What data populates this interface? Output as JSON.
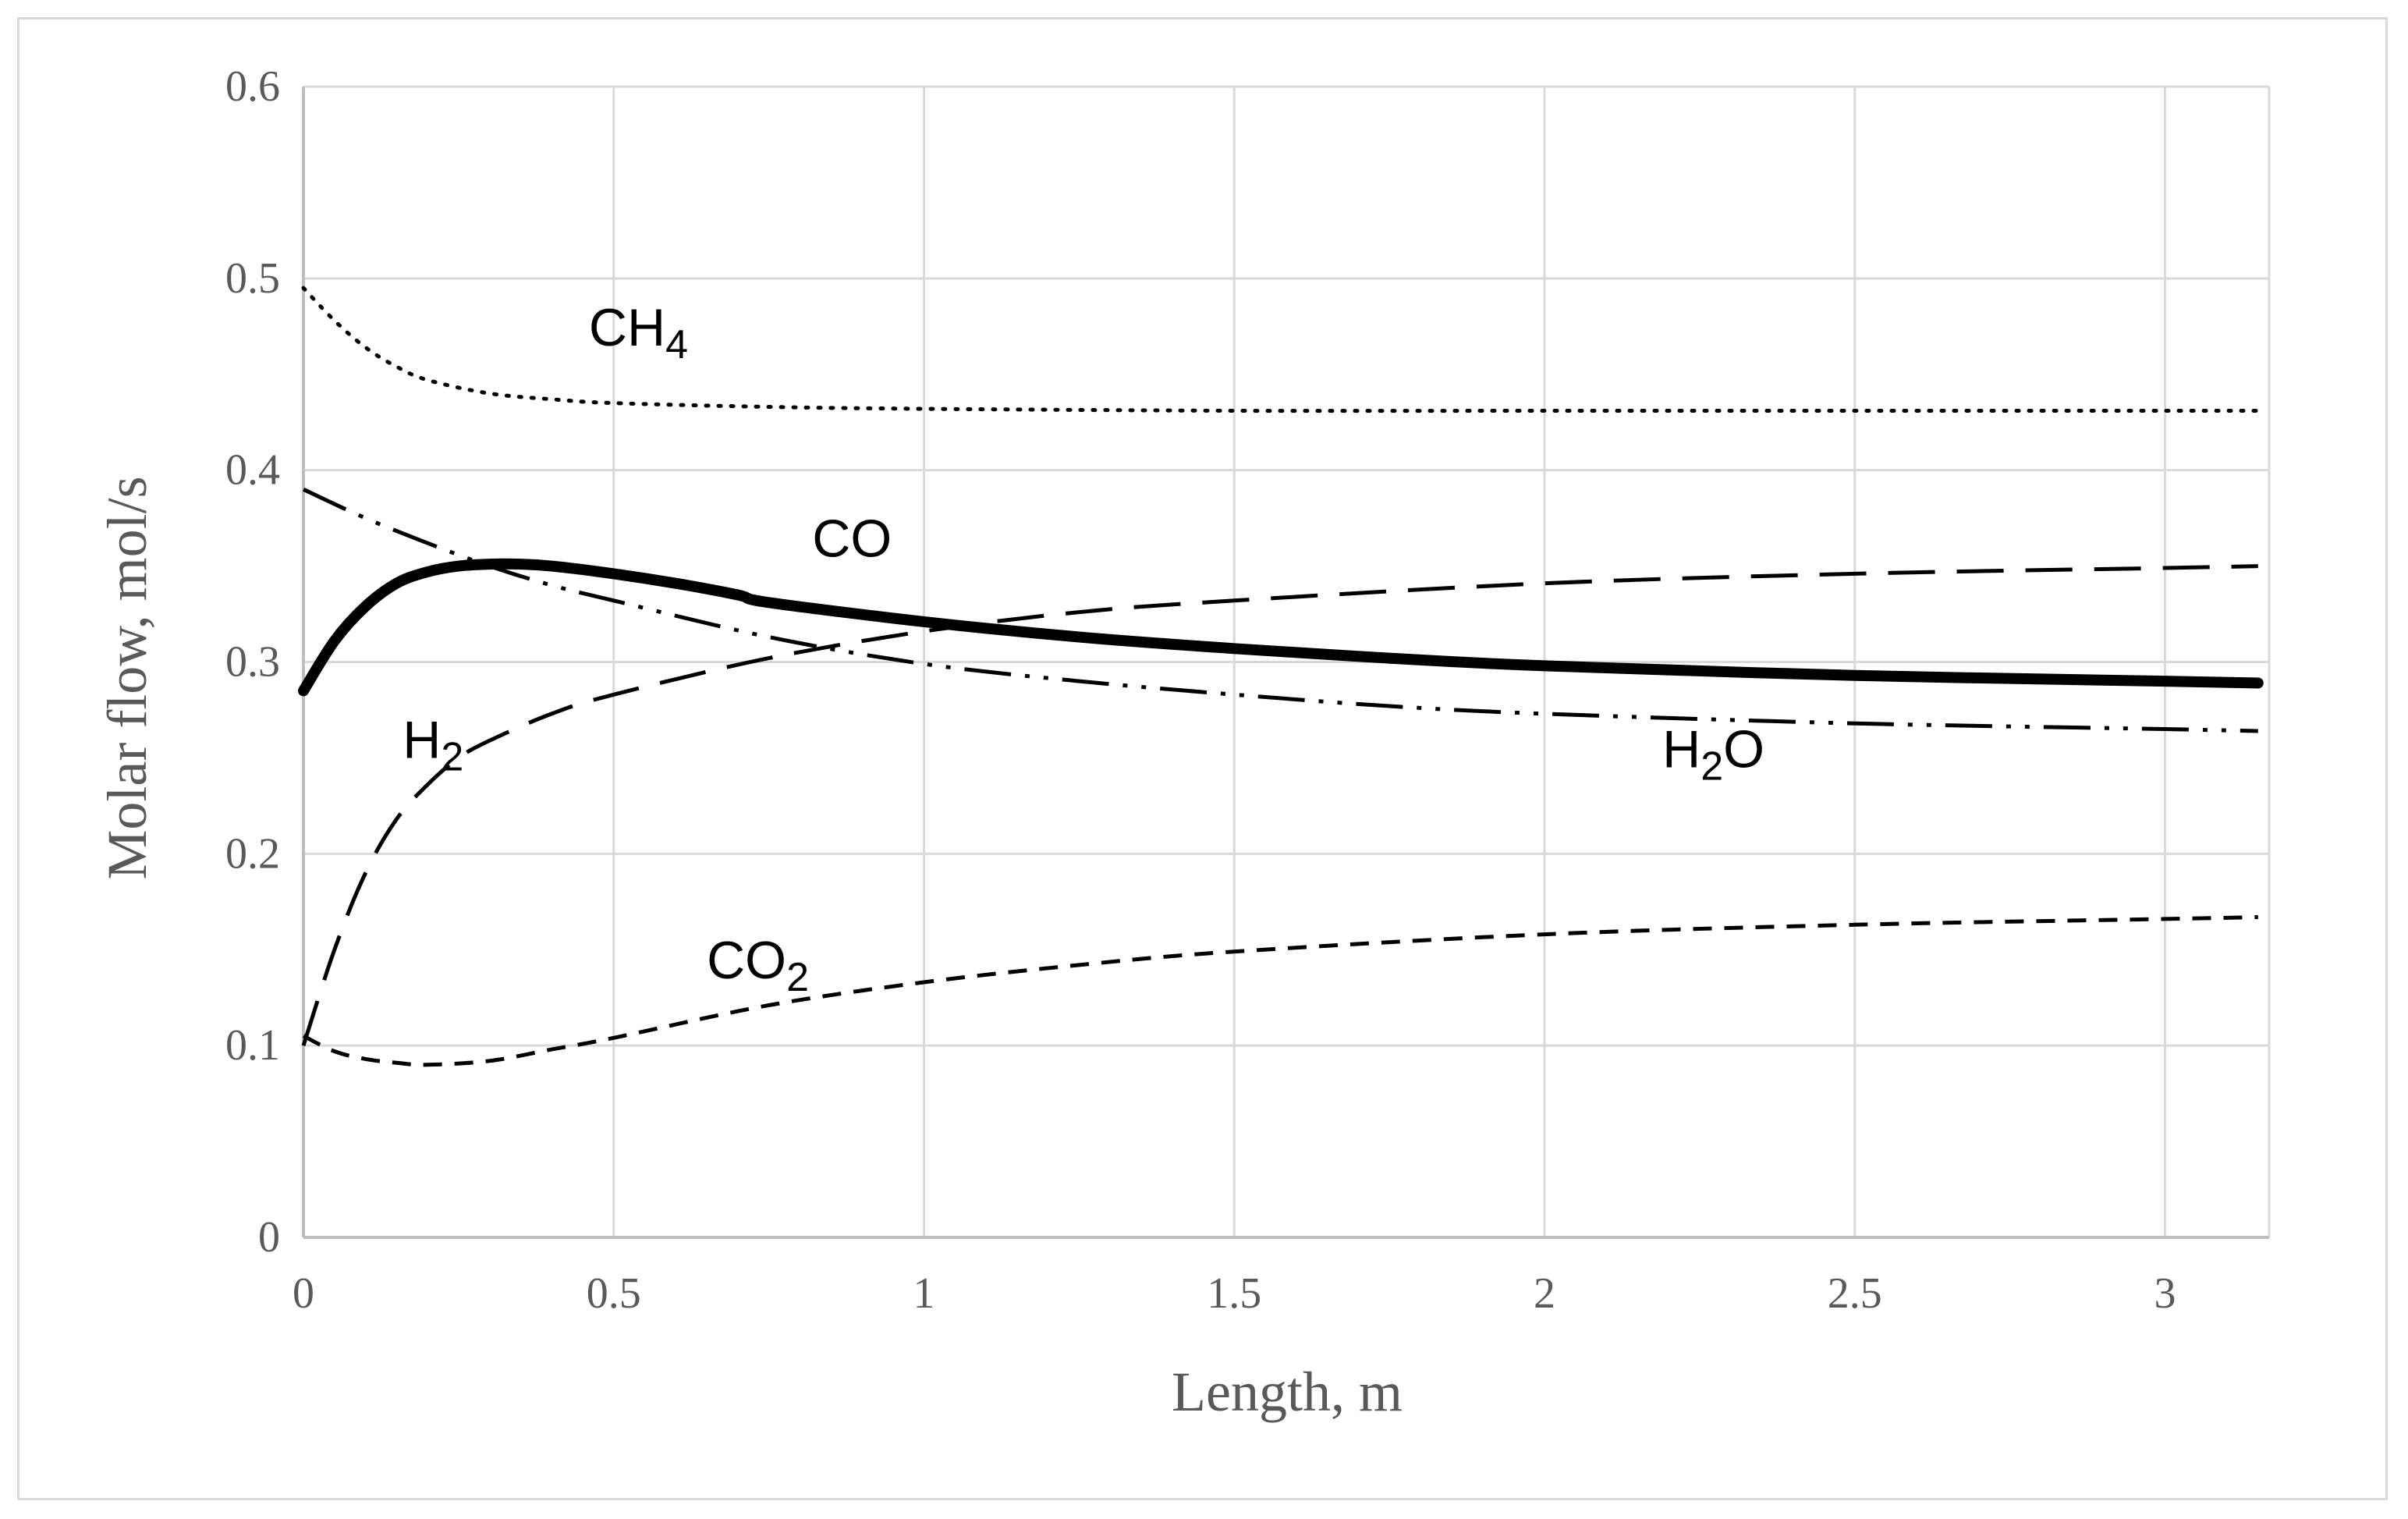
{
  "chart_data": {
    "type": "line",
    "title": "",
    "xlabel": "Length, m",
    "ylabel": "Molar flow, mol/s",
    "xlim": [
      0,
      3.18
    ],
    "ylim": [
      0,
      0.6
    ],
    "x_ticks": [
      "0",
      "0.5",
      "1",
      "1.5",
      "2",
      "2.5",
      "3"
    ],
    "y_ticks": [
      "0",
      "0.1",
      "0.2",
      "0.3",
      "0.4",
      "0.5",
      "0.6"
    ],
    "grid": true,
    "legend": "none (inline labels)",
    "series": [
      {
        "name": "CH4",
        "label_main": "CH",
        "label_sub": "4",
        "label_at": [
          0.46,
          0.465
        ],
        "style": "dotted",
        "x": [
          0,
          0.05,
          0.1,
          0.15,
          0.2,
          0.3,
          0.4,
          0.5,
          0.75,
          1,
          1.5,
          2,
          2.5,
          3,
          3.15
        ],
        "y": [
          0.495,
          0.478,
          0.464,
          0.454,
          0.447,
          0.44,
          0.437,
          0.435,
          0.433,
          0.432,
          0.431,
          0.431,
          0.431,
          0.431,
          0.431
        ]
      },
      {
        "name": "CO",
        "label_main": "CO",
        "label_sub": "",
        "label_at": [
          0.82,
          0.355
        ],
        "style": "solid-bold",
        "x": [
          0,
          0.05,
          0.1,
          0.15,
          0.2,
          0.25,
          0.3,
          0.35,
          0.4,
          0.5,
          0.6,
          0.7,
          0.75,
          1,
          1.25,
          1.5,
          1.75,
          2,
          2.5,
          3,
          3.15
        ],
        "y": [
          0.285,
          0.311,
          0.329,
          0.341,
          0.347,
          0.35,
          0.351,
          0.351,
          0.35,
          0.346,
          0.341,
          0.335,
          0.331,
          0.321,
          0.313,
          0.307,
          0.302,
          0.298,
          0.293,
          0.29,
          0.289
        ]
      },
      {
        "name": "H2O",
        "label_main": "H",
        "label_sub": "2",
        "label_after": "O",
        "label_at": [
          2.19,
          0.245
        ],
        "style": "dash-dot-dot",
        "x": [
          0,
          0.1,
          0.2,
          0.3,
          0.4,
          0.5,
          0.75,
          1,
          1.25,
          1.5,
          1.75,
          2,
          2.5,
          3,
          3.15
        ],
        "y": [
          0.39,
          0.375,
          0.362,
          0.35,
          0.34,
          0.332,
          0.313,
          0.299,
          0.29,
          0.283,
          0.277,
          0.273,
          0.268,
          0.265,
          0.264
        ]
      },
      {
        "name": "H2",
        "label_main": "H",
        "label_sub": "2",
        "label_at": [
          0.16,
          0.25
        ],
        "style": "long-dash",
        "x": [
          0,
          0.05,
          0.1,
          0.15,
          0.2,
          0.25,
          0.3,
          0.4,
          0.5,
          0.75,
          1,
          1.25,
          1.5,
          2,
          2.5,
          3,
          3.15
        ],
        "y": [
          0.1,
          0.15,
          0.19,
          0.218,
          0.236,
          0.25,
          0.259,
          0.273,
          0.283,
          0.302,
          0.316,
          0.326,
          0.332,
          0.341,
          0.346,
          0.349,
          0.35
        ]
      },
      {
        "name": "CO2",
        "label_main": "CO",
        "label_sub": "2",
        "label_at": [
          0.65,
          0.135
        ],
        "style": "short-dash",
        "x": [
          0,
          0.05,
          0.1,
          0.15,
          0.2,
          0.3,
          0.4,
          0.5,
          0.75,
          1,
          1.25,
          1.5,
          2,
          2.5,
          3,
          3.15
        ],
        "y": [
          0.105,
          0.097,
          0.093,
          0.091,
          0.09,
          0.092,
          0.098,
          0.104,
          0.121,
          0.133,
          0.142,
          0.149,
          0.158,
          0.163,
          0.166,
          0.167
        ]
      }
    ]
  }
}
